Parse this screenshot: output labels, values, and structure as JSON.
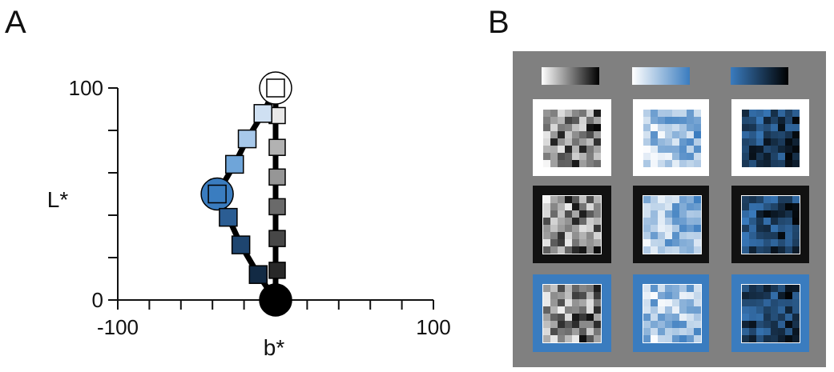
{
  "panels": {
    "a_label": "A",
    "b_label": "B"
  },
  "chart_data": {
    "type": "scatter",
    "xlabel": "b*",
    "ylabel": "L*",
    "xlim": [
      -100,
      100
    ],
    "ylim": [
      0,
      100
    ],
    "x_tick_labels": [
      "-100",
      "100"
    ],
    "y_tick_labels": [
      "0",
      "100"
    ],
    "x_ticks": [
      -100,
      -80,
      -60,
      -40,
      -20,
      0,
      20,
      40,
      60,
      80,
      100
    ],
    "y_ticks": [
      0,
      20,
      40,
      60,
      80,
      100
    ],
    "grid": false,
    "series": [
      {
        "color": "#000000",
        "points": [
          {
            "x": 0,
            "y": 100,
            "fill": "#ffffff"
          },
          {
            "x": 0,
            "y": 87,
            "fill": "#e8e8e8"
          },
          {
            "x": 0,
            "y": 72,
            "fill": "#b2b2b2"
          },
          {
            "x": 0,
            "y": 58,
            "fill": "#969696"
          },
          {
            "x": 0,
            "y": 44,
            "fill": "#6a6a6a"
          },
          {
            "x": 0,
            "y": 29,
            "fill": "#474747"
          },
          {
            "x": 0,
            "y": 14,
            "fill": "#282828"
          },
          {
            "x": 0,
            "y": 0,
            "fill": "#000000"
          }
        ]
      },
      {
        "color": "#2f6fae",
        "points": [
          {
            "x": 0,
            "y": 100,
            "fill": "#ffffff"
          },
          {
            "x": -8,
            "y": 88,
            "fill": "#cfe0f2"
          },
          {
            "x": -18,
            "y": 76,
            "fill": "#a7c8ea"
          },
          {
            "x": -26,
            "y": 64,
            "fill": "#6fa5d9"
          },
          {
            "x": -37,
            "y": 50,
            "fill": "#3a7dc0"
          },
          {
            "x": -30,
            "y": 39,
            "fill": "#2b5d93"
          },
          {
            "x": -22,
            "y": 26,
            "fill": "#1e456f"
          },
          {
            "x": -11,
            "y": 12,
            "fill": "#122a44"
          },
          {
            "x": 0,
            "y": 0,
            "fill": "#000000"
          }
        ]
      }
    ],
    "highlighted_points": [
      {
        "x": 0,
        "y": 100
      },
      {
        "x": -37,
        "y": 50
      },
      {
        "x": 0,
        "y": 0
      }
    ]
  },
  "panel_b": {
    "background": "#808080",
    "colormaps": [
      "white-to-black",
      "white-to-blue",
      "blue-to-black"
    ],
    "surrounds": [
      "#ffffff",
      "#111111",
      "#3a7cbf"
    ],
    "grid_size": 8
  }
}
